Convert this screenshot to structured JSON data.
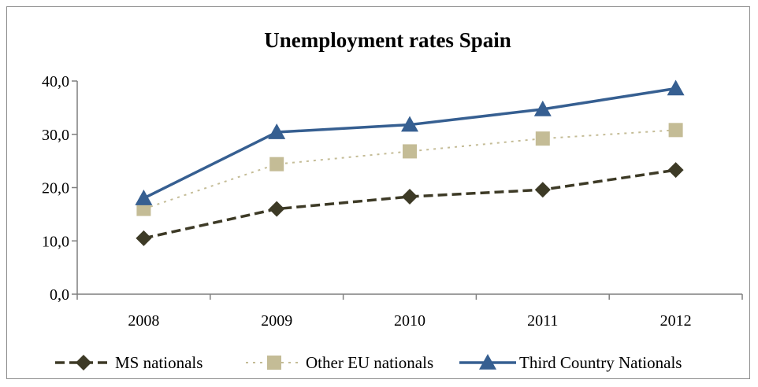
{
  "chart_data": {
    "type": "line",
    "title": "Unemployment rates Spain",
    "xlabel": "",
    "ylabel": "",
    "categories": [
      "2008",
      "2009",
      "2010",
      "2011",
      "2012"
    ],
    "ylim": [
      0,
      40
    ],
    "yticks": [
      "0,0",
      "10,0",
      "20,0",
      "30,0",
      "40,0"
    ],
    "grid": false,
    "legend_position": "bottom",
    "series": [
      {
        "name": "MS nationals",
        "values": [
          10.5,
          16.0,
          18.3,
          19.6,
          23.3
        ],
        "color": "#3d3a26",
        "dash": "dashed",
        "marker": "diamond"
      },
      {
        "name": "Other EU nationals",
        "values": [
          16.0,
          24.4,
          26.8,
          29.2,
          30.8
        ],
        "color": "#c4bc96",
        "dash": "dotted",
        "marker": "square"
      },
      {
        "name": "Third Country Nationals",
        "values": [
          18.0,
          30.4,
          31.8,
          34.7,
          38.6
        ],
        "color": "#365f91",
        "dash": "solid",
        "marker": "triangle"
      }
    ]
  }
}
